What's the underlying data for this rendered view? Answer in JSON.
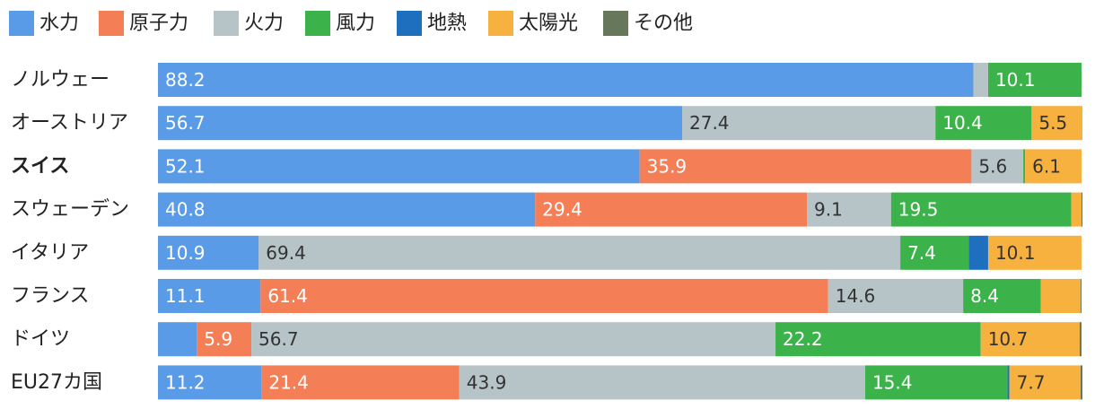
{
  "chart_data": {
    "type": "bar",
    "orientation": "horizontal",
    "stacked": true,
    "normalized_percent": true,
    "legend_position": "top-left",
    "grid": false,
    "xlim": [
      0,
      100
    ],
    "categories": [
      "ノルウェー",
      "オーストリア",
      "スイス",
      "スウェーデン",
      "イタリア",
      "フランス",
      "ドイツ",
      "EU27カ国"
    ],
    "highlight_category": "スイス",
    "series": [
      {
        "name": "水力",
        "color": "#5a9be8",
        "values": [
          88.2,
          56.7,
          52.1,
          40.8,
          10.9,
          11.1,
          4.2,
          11.2
        ],
        "labels": [
          "88.2",
          "56.7",
          "52.1",
          "40.8",
          "10.9",
          "11.1",
          "",
          "11.2"
        ]
      },
      {
        "name": "原子力",
        "color": "#f47f57",
        "values": [
          0,
          0,
          35.9,
          29.4,
          0,
          61.4,
          5.9,
          21.4
        ],
        "labels": [
          "",
          "",
          "35.9",
          "29.4",
          "",
          "61.4",
          "5.9",
          "21.4"
        ]
      },
      {
        "name": "火力",
        "color": "#b6c4c7",
        "values": [
          1.6,
          27.4,
          5.6,
          9.1,
          69.4,
          14.6,
          56.7,
          43.9
        ],
        "labels": [
          "",
          "27.4",
          "5.6",
          "9.1",
          "69.4",
          "14.6",
          "56.7",
          "43.9"
        ]
      },
      {
        "name": "風力",
        "color": "#3cb34a",
        "values": [
          10.1,
          10.4,
          0.2,
          19.5,
          7.4,
          8.4,
          22.2,
          15.4
        ],
        "labels": [
          "10.1",
          "10.4",
          "",
          "19.5",
          "7.4",
          "8.4",
          "22.2",
          "15.4"
        ]
      },
      {
        "name": "地熱",
        "color": "#1f6fbf",
        "values": [
          0,
          0,
          0,
          0,
          2.1,
          0,
          0,
          0.2
        ],
        "labels": [
          "",
          "",
          "",
          "",
          "",
          "",
          "",
          ""
        ]
      },
      {
        "name": "太陽光",
        "color": "#f7b13e",
        "values": [
          0,
          5.5,
          6.1,
          1.1,
          10.1,
          4.3,
          10.7,
          7.7
        ],
        "labels": [
          "",
          "5.5",
          "6.1",
          "",
          "10.1",
          "",
          "10.7",
          "7.7"
        ]
      },
      {
        "name": "その他",
        "color": "#67775b",
        "values": [
          0,
          0,
          0,
          0.1,
          0,
          0.1,
          0.2,
          0.2
        ],
        "labels": [
          "",
          "",
          "",
          "",
          "",
          "",
          "",
          ""
        ]
      }
    ]
  }
}
